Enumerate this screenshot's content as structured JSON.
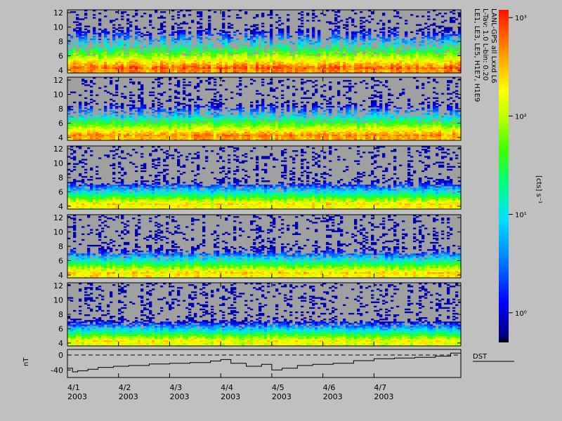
{
  "title_lines": [
    "LANL-GPS all Lxxd L6",
    "L-Tav: 1.0 L-bin: 0.20",
    "LE1, LE3, LE5, H1E7, H1E9"
  ],
  "panels_ylabel_ticks": [
    4,
    6,
    8,
    10,
    12
  ],
  "dst": {
    "label": "DST",
    "ylabel": "nT",
    "ticks": [
      0,
      -40
    ],
    "ylim": [
      -60,
      15
    ]
  },
  "x_ticks": [
    {
      "date": "4/1",
      "year": "2003"
    },
    {
      "date": "4/2",
      "year": "2003"
    },
    {
      "date": "4/3",
      "year": "2003"
    },
    {
      "date": "4/4",
      "year": "2003"
    },
    {
      "date": "4/5",
      "year": "2003"
    },
    {
      "date": "4/6",
      "year": "2003"
    },
    {
      "date": "4/7",
      "year": "2003"
    }
  ],
  "colorbar": {
    "label": "[cts] s⁻¹",
    "tick_labels": [
      "10³",
      "10²",
      "10¹",
      "10⁰"
    ],
    "scale": "log",
    "range": [
      0.5,
      1200
    ]
  },
  "colors": {
    "background": "#c0c0c0",
    "panel_gray": "#a0a0a0"
  },
  "chart_data": {
    "type": "heatmap",
    "xlabel": "",
    "ylabel": "",
    "ylim": [
      3.6,
      12.4
    ],
    "xlim_days": [
      0,
      7.7
    ],
    "panels": [
      {
        "channel": "LE1",
        "core_cts_at_L4": 800,
        "falloff_per_L": 0.55
      },
      {
        "channel": "LE3",
        "core_cts_at_L4": 600,
        "falloff_per_L": 0.65
      },
      {
        "channel": "LE5",
        "core_cts_at_L4": 300,
        "falloff_per_L": 0.8
      },
      {
        "channel": "H1E7",
        "core_cts_at_L4": 350,
        "falloff_per_L": 0.75
      },
      {
        "channel": "H1E9",
        "core_cts_at_L4": 250,
        "falloff_per_L": 0.85
      }
    ],
    "dst_series": {
      "name": "DST",
      "day": [
        0,
        0.1,
        0.2,
        0.4,
        0.6,
        0.9,
        1.2,
        1.6,
        2.0,
        2.4,
        2.8,
        3.0,
        3.2,
        3.5,
        3.8,
        4.0,
        4.2,
        4.5,
        4.8,
        5.2,
        5.6,
        6.0,
        6.4,
        6.8,
        7.2,
        7.5,
        7.7
      ],
      "nT": [
        -35,
        -45,
        -42,
        -38,
        -33,
        -30,
        -28,
        -24,
        -22,
        -20,
        -16,
        -12,
        -22,
        -30,
        -25,
        -40,
        -35,
        -28,
        -25,
        -22,
        -15,
        -10,
        -8,
        -6,
        -3,
        5,
        2
      ]
    }
  }
}
